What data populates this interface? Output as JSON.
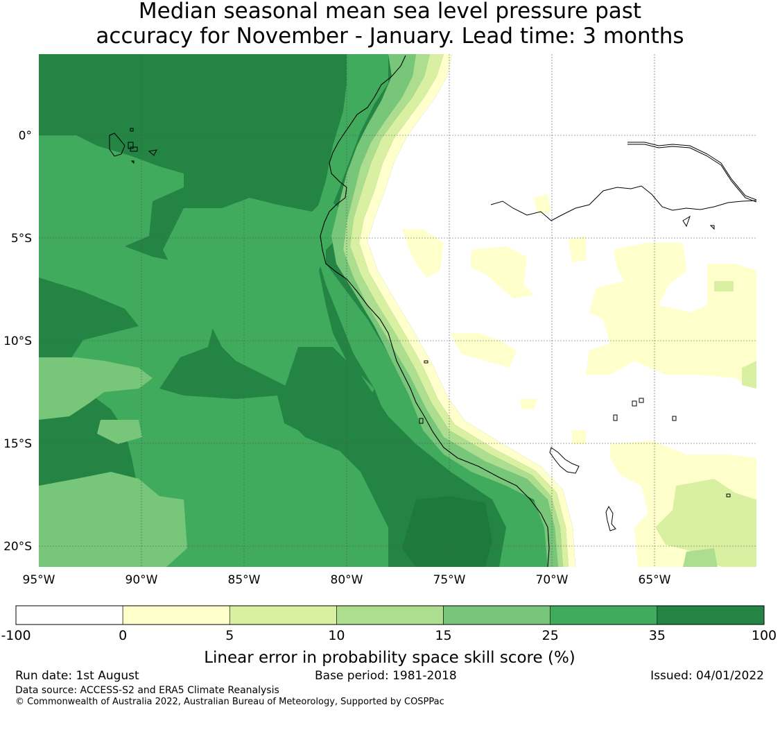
{
  "title_line1": "Median seasonal mean sea level pressure past",
  "title_line2": "accuracy for November - January. Lead time: 3 months",
  "lon_ticks": [
    "95°W",
    "90°W",
    "85°W",
    "80°W",
    "75°W",
    "70°W",
    "65°W"
  ],
  "lat_ticks": [
    "0°",
    "5°S",
    "10°S",
    "15°S",
    "20°S"
  ],
  "legend": {
    "bins": [
      {
        "from": -100,
        "to": 0,
        "color": "#ffffff"
      },
      {
        "from": 0,
        "to": 5,
        "color": "#ffffcc"
      },
      {
        "from": 5,
        "to": 10,
        "color": "#d9f0a3"
      },
      {
        "from": 10,
        "to": 15,
        "color": "#addd8e"
      },
      {
        "from": 15,
        "to": 25,
        "color": "#78c679"
      },
      {
        "from": 25,
        "to": 35,
        "color": "#41ab5d"
      },
      {
        "from": 35,
        "to": 100,
        "color": "#238443"
      }
    ],
    "tick_labels": [
      "-100",
      "0",
      "5",
      "10",
      "15",
      "25",
      "35",
      "100"
    ],
    "label": "Linear error in probability space skill score (%)"
  },
  "footer": {
    "run_date": "Run date: 1st August",
    "base_period": "Base period: 1981-2018",
    "issued": "Issued: 04/01/2022",
    "data_source": "Data source: ACCESS-S2 and ERA5 Climate Reanalysis",
    "copyright": "© Commonwealth of Australia 2022, Australian Bureau of Meteorology, Supported by COSPPac"
  },
  "colors": {
    "very_dark": "#1e7a3c",
    "dark": "#238443",
    "mid": "#41ab5d",
    "light": "#78c679",
    "lighter": "#addd8e",
    "pale": "#d9f0a3",
    "cream": "#ffffcc",
    "white": "#ffffff"
  }
}
